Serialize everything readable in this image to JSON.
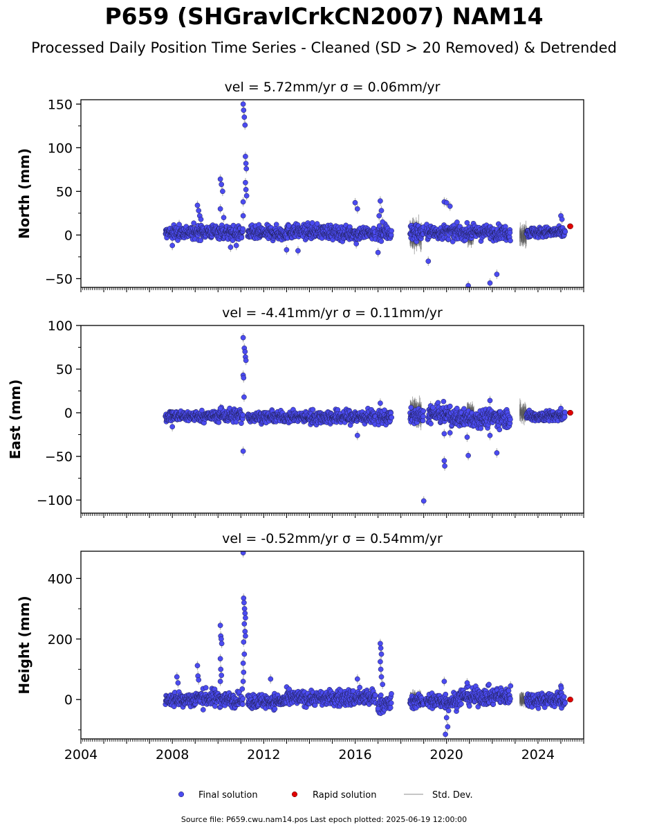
{
  "title": "P659 (SHGravlCrkCN2007) NAM14",
  "subtitle": "Processed Daily Position Time Series - Cleaned (SD > 20 Removed) & Detrended",
  "legend": {
    "final": "Final solution",
    "rapid": "Rapid solution",
    "std": "Std. Dev."
  },
  "footer": "Source file: P659.cwu.nam14.pos  Last epoch plotted: 2025-06-19 12:00:00",
  "colors": {
    "final": "#4b4bf0",
    "rapid": "#e00000",
    "std": "#b4b4b4",
    "edge": "#1e1e50"
  },
  "chart_data": [
    {
      "type": "scatter",
      "title": "vel = 5.72mm/yr   σ = 0.06mm/yr",
      "ylabel": "North (mm)",
      "xlim": [
        2004,
        2026
      ],
      "ylim": [
        -60,
        155
      ],
      "yticks": [
        -50,
        0,
        50,
        100,
        150
      ],
      "ytick_labels": [
        "−50",
        "0",
        "50",
        "100",
        "150"
      ],
      "xticks": [
        2004,
        2008,
        2012,
        2016,
        2020,
        2024
      ],
      "show_xtick_labels": false,
      "segments": [
        {
          "x0": 2007.7,
          "x1": 2009.0,
          "base": 3,
          "spread": 4
        },
        {
          "x0": 2009.0,
          "x1": 2010.2,
          "base": 4,
          "spread": 4
        },
        {
          "x0": 2010.2,
          "x1": 2011.1,
          "base": 2,
          "spread": 4
        },
        {
          "x0": 2011.3,
          "x1": 2013.0,
          "base": 2,
          "spread": 4
        },
        {
          "x0": 2013.0,
          "x1": 2015.0,
          "base": 4,
          "spread": 4
        },
        {
          "x0": 2015.0,
          "x1": 2016.9,
          "base": 2,
          "spread": 4
        },
        {
          "x0": 2017.0,
          "x1": 2017.6,
          "base": 3,
          "spread": 5
        },
        {
          "x0": 2018.4,
          "x1": 2019.0,
          "base": 3,
          "spread": 5
        },
        {
          "x0": 2019.1,
          "x1": 2022.8,
          "base": 3,
          "spread": 4
        },
        {
          "x0": 2023.5,
          "x1": 2025.2,
          "base": 3,
          "spread": 3
        }
      ],
      "outliers": [
        [
          2008.0,
          -12
        ],
        [
          2008.3,
          12
        ],
        [
          2009.1,
          34
        ],
        [
          2009.15,
          28
        ],
        [
          2009.2,
          22
        ],
        [
          2009.25,
          18
        ],
        [
          2010.1,
          64
        ],
        [
          2010.15,
          58
        ],
        [
          2010.2,
          50
        ],
        [
          2010.1,
          30
        ],
        [
          2010.25,
          20
        ],
        [
          2010.55,
          -14
        ],
        [
          2010.8,
          -12
        ],
        [
          2011.1,
          150
        ],
        [
          2011.12,
          143
        ],
        [
          2011.15,
          135
        ],
        [
          2011.18,
          126
        ],
        [
          2011.2,
          90
        ],
        [
          2011.22,
          82
        ],
        [
          2011.24,
          76
        ],
        [
          2011.2,
          60
        ],
        [
          2011.22,
          52
        ],
        [
          2011.25,
          45
        ],
        [
          2011.1,
          38
        ],
        [
          2011.1,
          22
        ],
        [
          2013.0,
          -17
        ],
        [
          2013.5,
          -18
        ],
        [
          2016.0,
          37
        ],
        [
          2016.1,
          30
        ],
        [
          2016.05,
          -10
        ],
        [
          2017.1,
          39
        ],
        [
          2017.15,
          28
        ],
        [
          2017.05,
          22
        ],
        [
          2017.2,
          15
        ],
        [
          2017.0,
          -20
        ],
        [
          2019.2,
          -30
        ],
        [
          2019.9,
          38
        ],
        [
          2020.0,
          37
        ],
        [
          2020.15,
          33
        ],
        [
          2020.95,
          -58
        ],
        [
          2021.9,
          -55
        ],
        [
          2022.2,
          -45
        ],
        [
          2025.0,
          22
        ],
        [
          2025.05,
          18
        ]
      ],
      "stddev_clusters": [
        {
          "x0": 2018.4,
          "x1": 2018.9,
          "half": 14
        },
        {
          "x0": 2020.9,
          "x1": 2021.2,
          "half": 10
        },
        {
          "x0": 2023.2,
          "x1": 2023.5,
          "half": 9
        }
      ],
      "rapid": [
        [
          2025.4,
          10
        ],
        [
          2025.42,
          10
        ]
      ]
    },
    {
      "type": "scatter",
      "title": "vel = -4.41mm/yr   σ = 0.11mm/yr",
      "ylabel": "East (mm)",
      "xlim": [
        2004,
        2026
      ],
      "ylim": [
        -115,
        100
      ],
      "yticks": [
        -100,
        -50,
        0,
        50,
        100
      ],
      "ytick_labels": [
        "−100",
        "−50",
        "0",
        "50",
        "100"
      ],
      "xticks": [
        2004,
        2008,
        2012,
        2016,
        2020,
        2024
      ],
      "show_xtick_labels": false,
      "segments": [
        {
          "x0": 2007.7,
          "x1": 2010.0,
          "base": -4,
          "spread": 3
        },
        {
          "x0": 2010.0,
          "x1": 2011.1,
          "base": -3,
          "spread": 4
        },
        {
          "x0": 2011.3,
          "x1": 2014.0,
          "base": -5,
          "spread": 3
        },
        {
          "x0": 2014.0,
          "x1": 2016.9,
          "base": -5,
          "spread": 4
        },
        {
          "x0": 2017.0,
          "x1": 2017.6,
          "base": -5,
          "spread": 4
        },
        {
          "x0": 2018.4,
          "x1": 2019.0,
          "base": -4,
          "spread": 4
        },
        {
          "x0": 2019.2,
          "x1": 2020.2,
          "base": -2,
          "spread": 5
        },
        {
          "x0": 2020.2,
          "x1": 2022.8,
          "base": -6,
          "spread": 5
        },
        {
          "x0": 2023.5,
          "x1": 2025.2,
          "base": -4,
          "spread": 3
        }
      ],
      "outliers": [
        [
          2008.0,
          -16
        ],
        [
          2010.1,
          5
        ],
        [
          2011.1,
          86
        ],
        [
          2011.15,
          74
        ],
        [
          2011.18,
          70
        ],
        [
          2011.2,
          64
        ],
        [
          2011.22,
          60
        ],
        [
          2011.1,
          43
        ],
        [
          2011.12,
          40
        ],
        [
          2011.14,
          18
        ],
        [
          2011.1,
          -44
        ],
        [
          2016.1,
          -26
        ],
        [
          2017.1,
          11
        ],
        [
          2019.0,
          -101
        ],
        [
          2019.9,
          -24
        ],
        [
          2019.9,
          -55
        ],
        [
          2019.92,
          -61
        ],
        [
          2020.15,
          -23
        ],
        [
          2020.9,
          -28
        ],
        [
          2020.95,
          -49
        ],
        [
          2021.9,
          14
        ],
        [
          2021.9,
          -26
        ],
        [
          2022.2,
          -46
        ],
        [
          2019.3,
          8
        ],
        [
          2019.4,
          6
        ],
        [
          2025.0,
          5
        ]
      ],
      "stddev_clusters": [
        {
          "x0": 2018.4,
          "x1": 2018.9,
          "half": 12
        },
        {
          "x0": 2020.9,
          "x1": 2021.2,
          "half": 8
        },
        {
          "x0": 2023.2,
          "x1": 2023.5,
          "half": 8
        }
      ],
      "rapid": [
        [
          2025.4,
          0
        ],
        [
          2025.42,
          0
        ]
      ]
    },
    {
      "type": "scatter",
      "title": "vel = -0.52mm/yr   σ = 0.54mm/yr",
      "ylabel": "Height (mm)",
      "xlim": [
        2004,
        2026
      ],
      "ylim": [
        -130,
        490
      ],
      "yticks": [
        0,
        200,
        400
      ],
      "ytick_labels": [
        "0",
        "200",
        "400"
      ],
      "xticks": [
        2004,
        2008,
        2012,
        2016,
        2020,
        2024
      ],
      "xtick_labels": [
        "2004",
        "2008",
        "2012",
        "2016",
        "2020",
        "2024"
      ],
      "show_xtick_labels": true,
      "segments": [
        {
          "x0": 2007.7,
          "x1": 2009.0,
          "base": 0,
          "spread": 12
        },
        {
          "x0": 2009.0,
          "x1": 2010.2,
          "base": 5,
          "spread": 14
        },
        {
          "x0": 2010.2,
          "x1": 2011.1,
          "base": 0,
          "spread": 12
        },
        {
          "x0": 2011.3,
          "x1": 2013.0,
          "base": -5,
          "spread": 12
        },
        {
          "x0": 2013.0,
          "x1": 2015.0,
          "base": 5,
          "spread": 12
        },
        {
          "x0": 2015.0,
          "x1": 2016.9,
          "base": 5,
          "spread": 14
        },
        {
          "x0": 2017.0,
          "x1": 2017.6,
          "base": -15,
          "spread": 15
        },
        {
          "x0": 2018.4,
          "x1": 2019.0,
          "base": -5,
          "spread": 10
        },
        {
          "x0": 2019.1,
          "x1": 2020.5,
          "base": -5,
          "spread": 14
        },
        {
          "x0": 2020.5,
          "x1": 2022.8,
          "base": 10,
          "spread": 14
        },
        {
          "x0": 2023.5,
          "x1": 2025.2,
          "base": 0,
          "spread": 12
        }
      ],
      "outliers": [
        [
          2008.2,
          75
        ],
        [
          2008.25,
          55
        ],
        [
          2009.1,
          112
        ],
        [
          2009.12,
          78
        ],
        [
          2009.15,
          65
        ],
        [
          2010.1,
          245
        ],
        [
          2010.12,
          210
        ],
        [
          2010.14,
          200
        ],
        [
          2010.16,
          185
        ],
        [
          2010.1,
          135
        ],
        [
          2010.12,
          100
        ],
        [
          2010.15,
          80
        ],
        [
          2010.1,
          60
        ],
        [
          2011.1,
          485
        ],
        [
          2011.12,
          335
        ],
        [
          2011.14,
          320
        ],
        [
          2011.16,
          300
        ],
        [
          2011.18,
          285
        ],
        [
          2011.2,
          270
        ],
        [
          2011.15,
          250
        ],
        [
          2011.18,
          225
        ],
        [
          2011.2,
          210
        ],
        [
          2011.12,
          190
        ],
        [
          2011.15,
          150
        ],
        [
          2011.1,
          120
        ],
        [
          2011.12,
          90
        ],
        [
          2011.1,
          60
        ],
        [
          2012.3,
          68
        ],
        [
          2016.1,
          68
        ],
        [
          2016.2,
          40
        ],
        [
          2017.1,
          185
        ],
        [
          2017.12,
          170
        ],
        [
          2017.15,
          150
        ],
        [
          2017.1,
          125
        ],
        [
          2017.12,
          100
        ],
        [
          2017.15,
          75
        ],
        [
          2017.2,
          50
        ],
        [
          2017.0,
          -30
        ],
        [
          2019.9,
          60
        ],
        [
          2020.0,
          -60
        ],
        [
          2020.05,
          -90
        ],
        [
          2019.95,
          -115
        ],
        [
          2020.9,
          55
        ],
        [
          2022.8,
          45
        ],
        [
          2025.0,
          45
        ],
        [
          2025.02,
          38
        ]
      ],
      "stddev_clusters": [
        {
          "x0": 2018.4,
          "x1": 2018.9,
          "half": 25
        },
        {
          "x0": 2023.2,
          "x1": 2023.5,
          "half": 20
        }
      ],
      "rapid": [
        [
          2025.4,
          0
        ],
        [
          2025.42,
          0
        ]
      ]
    }
  ]
}
